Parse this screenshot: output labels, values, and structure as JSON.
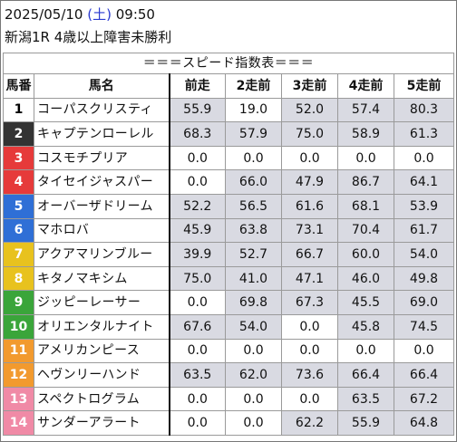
{
  "header": {
    "date": "2025/05/10",
    "weekday": "(土)",
    "time": "09:50",
    "race": "新潟1R 4歳以上障害未勝利"
  },
  "table": {
    "banner": "＝＝＝スピード指数表＝＝＝",
    "columns": [
      "馬番",
      "馬名",
      "前走",
      "2走前",
      "3走前",
      "4走前",
      "5走前"
    ],
    "rows": [
      {
        "num": "1",
        "name": "コーパスクリスティ",
        "bg": "#ffffff",
        "fg": "#000000",
        "vals": [
          "55.9",
          "19.0",
          "52.0",
          "57.4",
          "80.3"
        ],
        "hi": [
          1,
          0,
          1,
          1,
          1
        ]
      },
      {
        "num": "2",
        "name": "キャプテンローレル",
        "bg": "#333333",
        "fg": "#ffffff",
        "vals": [
          "68.3",
          "57.9",
          "75.0",
          "58.9",
          "61.3"
        ],
        "hi": [
          1,
          1,
          1,
          1,
          1
        ]
      },
      {
        "num": "3",
        "name": "コスモチプリア",
        "bg": "#e63a3a",
        "fg": "#ffffff",
        "vals": [
          "0.0",
          "0.0",
          "0.0",
          "0.0",
          "0.0"
        ],
        "hi": [
          0,
          0,
          0,
          0,
          0
        ]
      },
      {
        "num": "4",
        "name": "タイセイジャスパー",
        "bg": "#e63a3a",
        "fg": "#ffffff",
        "vals": [
          "0.0",
          "66.0",
          "47.9",
          "86.7",
          "64.1"
        ],
        "hi": [
          0,
          1,
          1,
          1,
          1
        ]
      },
      {
        "num": "5",
        "name": "オーバーザドリーム",
        "bg": "#2f6fd6",
        "fg": "#ffffff",
        "vals": [
          "52.2",
          "56.5",
          "61.6",
          "68.1",
          "53.9"
        ],
        "hi": [
          1,
          1,
          1,
          1,
          1
        ]
      },
      {
        "num": "6",
        "name": "マホロバ",
        "bg": "#2f6fd6",
        "fg": "#ffffff",
        "vals": [
          "45.9",
          "63.8",
          "73.1",
          "70.4",
          "61.7"
        ],
        "hi": [
          1,
          1,
          1,
          1,
          1
        ]
      },
      {
        "num": "7",
        "name": "アクアマリンブルー",
        "bg": "#e8c21e",
        "fg": "#ffffff",
        "vals": [
          "39.9",
          "52.7",
          "66.7",
          "60.0",
          "54.0"
        ],
        "hi": [
          1,
          1,
          1,
          1,
          1
        ]
      },
      {
        "num": "8",
        "name": "キタノマキシム",
        "bg": "#e8c21e",
        "fg": "#ffffff",
        "vals": [
          "75.0",
          "41.0",
          "47.1",
          "46.0",
          "49.8"
        ],
        "hi": [
          1,
          1,
          1,
          1,
          1
        ]
      },
      {
        "num": "9",
        "name": "ジッピーレーサー",
        "bg": "#3aa53a",
        "fg": "#ffffff",
        "vals": [
          "0.0",
          "69.8",
          "67.3",
          "45.5",
          "69.0"
        ],
        "hi": [
          0,
          1,
          1,
          1,
          1
        ]
      },
      {
        "num": "10",
        "name": "オリエンタルナイト",
        "bg": "#3aa53a",
        "fg": "#ffffff",
        "vals": [
          "67.6",
          "54.0",
          "0.0",
          "45.8",
          "74.5"
        ],
        "hi": [
          1,
          1,
          0,
          1,
          1
        ]
      },
      {
        "num": "11",
        "name": "アメリカンピース",
        "bg": "#f29a2e",
        "fg": "#ffffff",
        "vals": [
          "0.0",
          "0.0",
          "0.0",
          "0.0",
          "0.0"
        ],
        "hi": [
          0,
          0,
          0,
          0,
          0
        ]
      },
      {
        "num": "12",
        "name": "ヘヴンリーハンド",
        "bg": "#f29a2e",
        "fg": "#ffffff",
        "vals": [
          "63.5",
          "62.0",
          "73.6",
          "66.4",
          "66.4"
        ],
        "hi": [
          1,
          1,
          1,
          1,
          1
        ]
      },
      {
        "num": "13",
        "name": "スペクトログラム",
        "bg": "#f08aa6",
        "fg": "#ffffff",
        "vals": [
          "0.0",
          "0.0",
          "0.0",
          "63.5",
          "67.2"
        ],
        "hi": [
          0,
          0,
          0,
          1,
          1
        ]
      },
      {
        "num": "14",
        "name": "サンダーアラート",
        "bg": "#f08aa6",
        "fg": "#ffffff",
        "vals": [
          "0.0",
          "0.0",
          "62.2",
          "55.9",
          "64.8"
        ],
        "hi": [
          0,
          0,
          1,
          1,
          1
        ]
      }
    ]
  }
}
